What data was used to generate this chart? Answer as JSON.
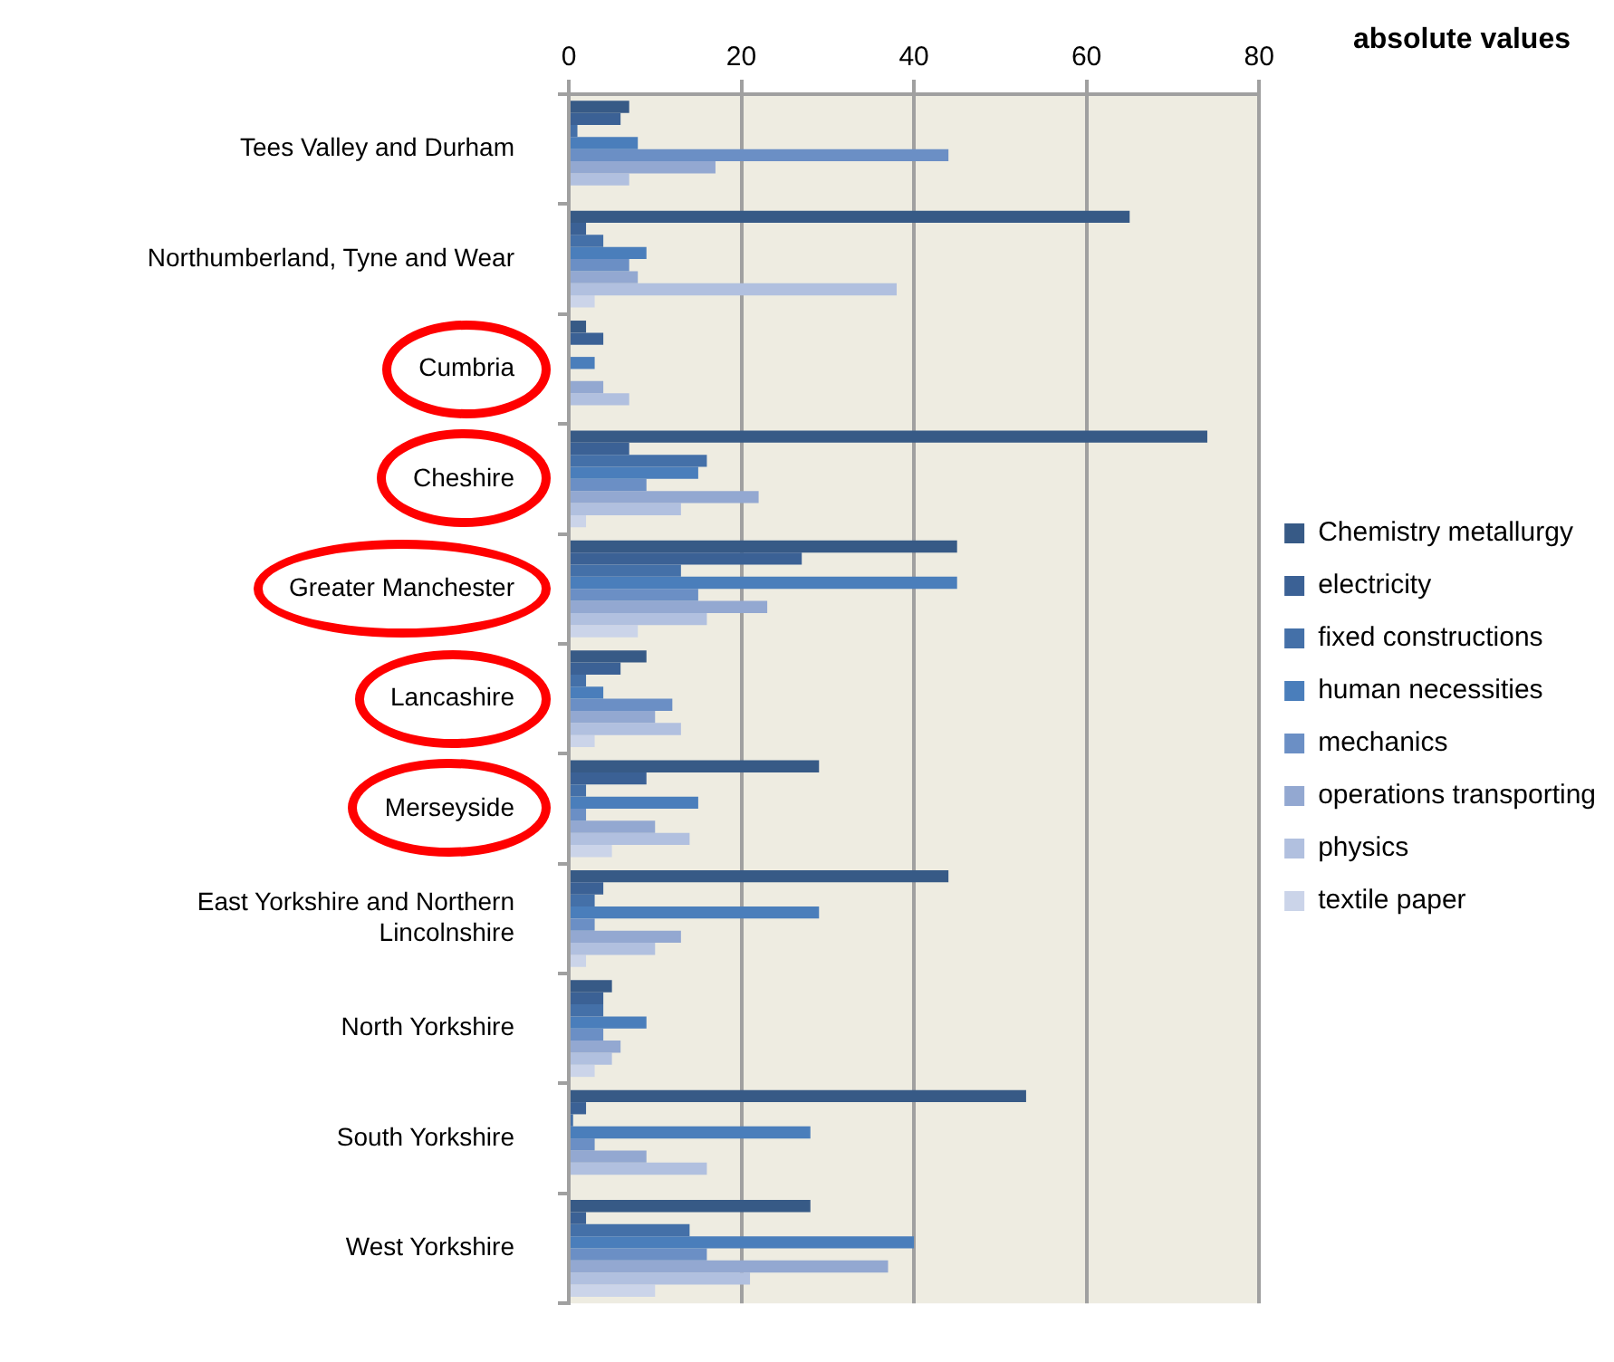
{
  "chart_data": {
    "type": "bar",
    "orientation": "horizontal",
    "categories": [
      "Tees Valley and Durham",
      "Northumberland, Tyne and Wear",
      "Cumbria",
      "Cheshire",
      "Greater Manchester",
      "Lancashire",
      "Merseyside",
      "East Yorkshire and Northern Lincolnshire",
      "North Yorkshire",
      "South Yorkshire",
      "West Yorkshire"
    ],
    "series": [
      {
        "name": "Chemistry metallurgy",
        "color": "#375a86",
        "values": [
          7,
          65,
          2,
          74,
          45,
          9,
          29,
          44,
          5,
          53,
          28
        ]
      },
      {
        "name": "electricity",
        "color": "#3b6195",
        "values": [
          6,
          2,
          4,
          7,
          27,
          6,
          9,
          4,
          4,
          2,
          2
        ]
      },
      {
        "name": "fixed constructions",
        "color": "#4470a8",
        "values": [
          1,
          4,
          0,
          16,
          13,
          2,
          2,
          3,
          4,
          0.5,
          14
        ]
      },
      {
        "name": "human necessities",
        "color": "#4a7ebb",
        "values": [
          8,
          9,
          3,
          15,
          45,
          4,
          15,
          29,
          9,
          28,
          40
        ]
      },
      {
        "name": "mechanics",
        "color": "#6b8fc5",
        "values": [
          44,
          7,
          0,
          9,
          15,
          12,
          2,
          3,
          4,
          3,
          16
        ]
      },
      {
        "name": "operations transporting",
        "color": "#93a8d1",
        "values": [
          17,
          8,
          4,
          22,
          23,
          10,
          10,
          13,
          6,
          9,
          37
        ]
      },
      {
        "name": "physics",
        "color": "#b1c0df",
        "values": [
          7,
          38,
          7,
          13,
          16,
          13,
          14,
          10,
          5,
          16,
          21
        ]
      },
      {
        "name": "textile paper",
        "color": "#cbd4e9",
        "values": [
          0,
          3,
          0,
          2,
          8,
          3,
          5,
          2,
          3,
          0,
          10
        ]
      }
    ],
    "xlim": [
      0,
      80
    ],
    "xticks": [
      0,
      20,
      40,
      60,
      80
    ],
    "grid": "x",
    "legend": "right",
    "annotations": [
      "absolute values"
    ]
  }
}
